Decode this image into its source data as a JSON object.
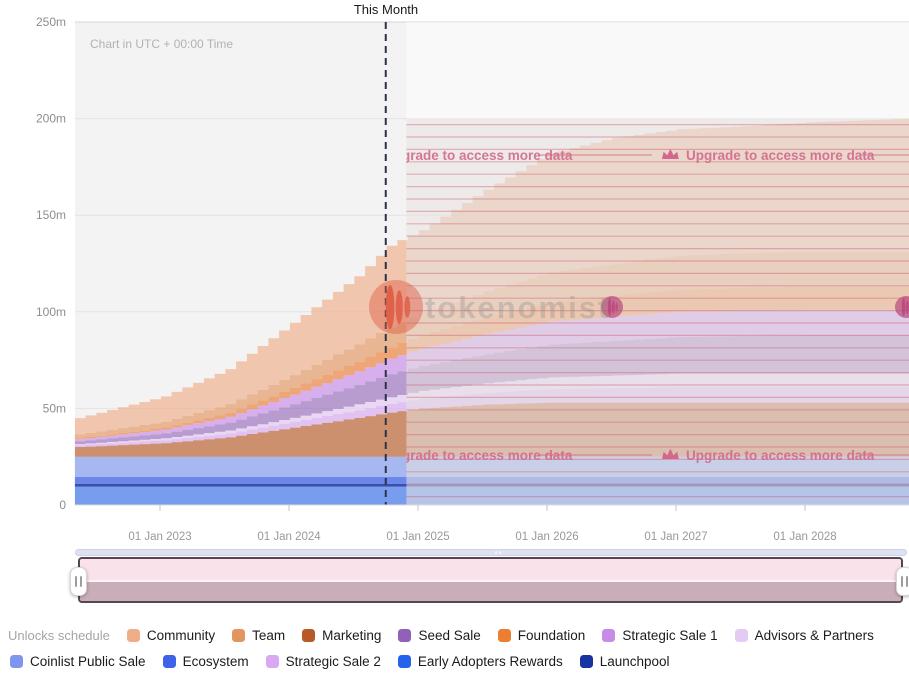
{
  "header": {
    "this_month_label": "This Month",
    "timezone_note": "Chart in UTC + 00:00 Time"
  },
  "watermark": {
    "text": "tokenomist"
  },
  "paywall": {
    "label_full": "Upgrade to access more data",
    "label_clipped_hint": "grade to access more data",
    "text_color": "#d4688c",
    "stripe_color": "rgba(203,92,110,0.42)"
  },
  "chart_data": {
    "type": "area",
    "stacked": true,
    "step": true,
    "unit": "millions of tokens",
    "title": "Unlocks schedule",
    "ylim": [
      0,
      250
    ],
    "grid": true,
    "y_ticks": [
      {
        "v": 0,
        "label": "0"
      },
      {
        "v": 50,
        "label": "50m"
      },
      {
        "v": 100,
        "label": "100m"
      },
      {
        "v": 150,
        "label": "150m"
      },
      {
        "v": 200,
        "label": "200m"
      },
      {
        "v": 250,
        "label": "250m"
      }
    ],
    "x_ticks": [
      {
        "year": 2023,
        "label": "01 Jan 2023"
      },
      {
        "year": 2024,
        "label": "01 Jan 2024"
      },
      {
        "year": 2025,
        "label": "01 Jan 2025"
      },
      {
        "year": 2026,
        "label": "01 Jan 2026"
      },
      {
        "year": 2027,
        "label": "01 Jan 2027"
      },
      {
        "year": 2028,
        "label": "01 Jan 2028"
      }
    ],
    "x_range_years": [
      2022.34,
      2028.81
    ],
    "this_month_year": 2024.75,
    "locked_from_year": 2024.91,
    "key_years": [
      2022.34,
      2023.0,
      2023.5,
      2024.0,
      2024.5,
      2024.77,
      2025.0,
      2025.5,
      2026.0,
      2026.5,
      2027.0,
      2027.5,
      2028.0,
      2028.81
    ],
    "series": [
      {
        "name": "Early Adopters Rewards",
        "color": "#2563EB",
        "opacity": 0.6,
        "values": [
          9.5,
          9.5,
          9.5,
          9.5,
          9.5,
          9.5,
          9.5,
          9.5,
          9.5,
          9.5,
          9.5,
          9.5,
          9.5,
          9.5
        ]
      },
      {
        "name": "Launchpool",
        "color": "#16339F",
        "opacity": 0.85,
        "values": [
          1.5,
          1.5,
          1.5,
          1.5,
          1.5,
          1.5,
          1.5,
          1.5,
          1.5,
          1.5,
          1.5,
          1.5,
          1.5,
          1.5
        ]
      },
      {
        "name": "Ecosystem",
        "color": "#3D63E8",
        "opacity": 0.75,
        "values": [
          3.5,
          3.5,
          3.5,
          3.5,
          3.5,
          3.5,
          3.5,
          3.5,
          3.5,
          3.5,
          3.5,
          3.5,
          3.5,
          3.5
        ]
      },
      {
        "name": "Coinlist Public Sale",
        "color": "#7E96EE",
        "opacity": 0.65,
        "values": [
          10.5,
          10.5,
          10.5,
          10.5,
          10.5,
          10.5,
          10.5,
          10.5,
          10.5,
          10.5,
          10.5,
          10.5,
          10.5,
          10.5
        ]
      },
      {
        "name": "Marketing",
        "color": "#B75A28",
        "opacity": 0.65,
        "values": [
          5,
          7,
          10,
          15,
          20,
          23,
          25,
          27,
          28,
          28,
          28,
          28,
          28,
          28
        ]
      },
      {
        "name": "Strategic Sale 2",
        "color": "#D9A8F0",
        "opacity": 0.65,
        "values": [
          1,
          1.5,
          2,
          3,
          4,
          4.5,
          5,
          6,
          7,
          7.5,
          8,
          8,
          8,
          8
        ]
      },
      {
        "name": "Advisors & Partners",
        "color": "#E2CCF4",
        "opacity": 0.7,
        "values": [
          0.5,
          1,
          1.5,
          2,
          3,
          3.5,
          4,
          5,
          6,
          6.5,
          7,
          7,
          7,
          7
        ]
      },
      {
        "name": "Seed Sale",
        "color": "#9061B8",
        "opacity": 0.6,
        "values": [
          1.5,
          2.5,
          4,
          7,
          10,
          12,
          13,
          15,
          17,
          18,
          19,
          19.5,
          20,
          20
        ]
      },
      {
        "name": "Strategic Sale 1",
        "color": "#C78BE8",
        "opacity": 0.65,
        "values": [
          1,
          2,
          3,
          5,
          7,
          8,
          9,
          10.5,
          12,
          12.5,
          13,
          13,
          13,
          13
        ]
      },
      {
        "name": "Foundation",
        "color": "#EC7D33",
        "opacity": 0.65,
        "values": [
          0.5,
          1,
          2,
          3.5,
          5,
          6,
          7,
          8.5,
          10,
          11,
          11.5,
          12,
          12,
          12
        ]
      },
      {
        "name": "Team",
        "color": "#E2955F",
        "opacity": 0.65,
        "values": [
          2,
          3,
          4.5,
          6.5,
          9,
          10.5,
          11.5,
          13.5,
          15.5,
          16.5,
          17.5,
          18,
          18,
          18
        ]
      },
      {
        "name": "Community",
        "color": "#EFAE88",
        "opacity": 0.65,
        "values": [
          8.5,
          13,
          18,
          27,
          35,
          42.5,
          42.5,
          52.5,
          61.5,
          65,
          65.5,
          65.5,
          67,
          69
        ]
      }
    ]
  },
  "legend": {
    "title": "Unlocks schedule",
    "row1": [
      {
        "label": "Community",
        "color": "#EFAE88"
      },
      {
        "label": "Team",
        "color": "#E2955F"
      },
      {
        "label": "Marketing",
        "color": "#B75A28"
      },
      {
        "label": "Seed Sale",
        "color": "#9061B8"
      },
      {
        "label": "Foundation",
        "color": "#EC7D33"
      },
      {
        "label": "Strategic Sale 1",
        "color": "#C78BE8"
      },
      {
        "label": "Advisors & Partners",
        "color": "#E2CCF4"
      }
    ],
    "row2": [
      {
        "label": "Coinlist Public Sale",
        "color": "#7E96EE"
      },
      {
        "label": "Ecosystem",
        "color": "#3D63E8"
      },
      {
        "label": "Strategic Sale 2",
        "color": "#D9A8F0"
      },
      {
        "label": "Early Adopters Rewards",
        "color": "#2563EB"
      },
      {
        "label": "Launchpool",
        "color": "#16339F"
      }
    ]
  }
}
